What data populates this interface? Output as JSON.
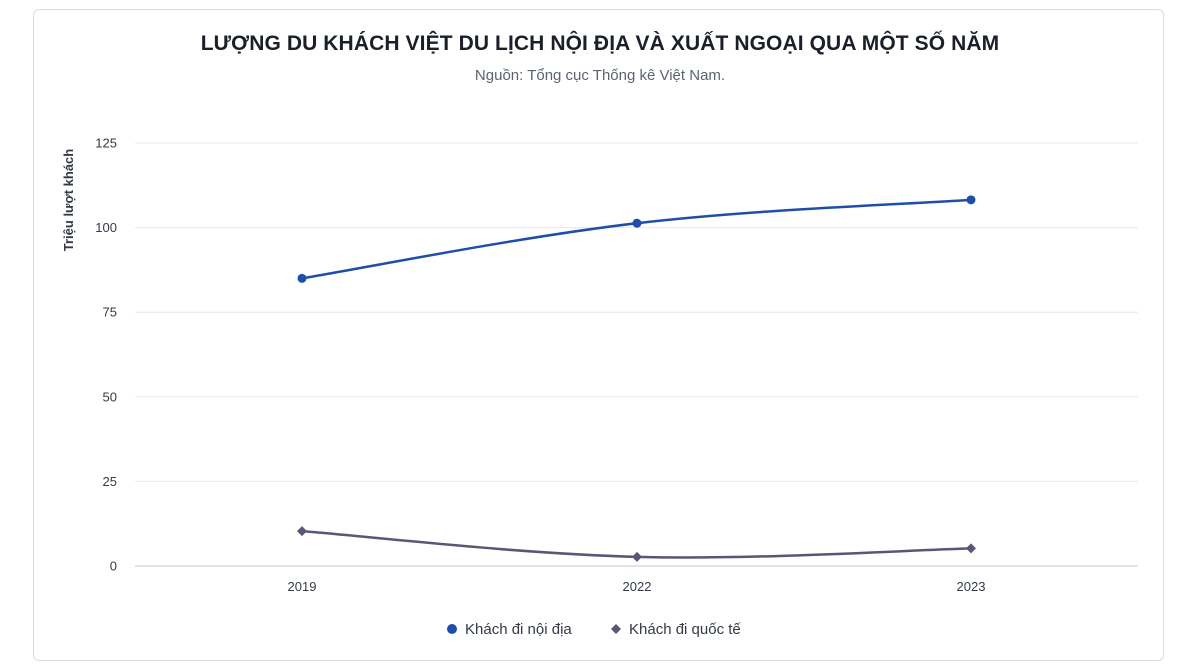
{
  "chart_data": {
    "type": "line",
    "title": "LƯỢNG DU KHÁCH VIỆT DU LỊCH NỘI ĐỊA VÀ XUẤT NGOẠI QUA MỘT SỐ NĂM",
    "subtitle": "Nguồn: Tổng cục Thống kê Việt Nam.",
    "xlabel": "",
    "ylabel": "Triệu lượt khách",
    "categories": [
      "2019",
      "2022",
      "2023"
    ],
    "yticks": [
      "0",
      "25",
      "50",
      "75",
      "100",
      "125"
    ],
    "ylim": [
      0,
      125
    ],
    "grid": true,
    "legend_position": "bottom-center",
    "series": [
      {
        "name": "Khách đi nội địa",
        "values": [
          85,
          101.3,
          108.2
        ],
        "color": "#1f4ea8",
        "marker": "circle"
      },
      {
        "name": "Khách đi quốc tế",
        "values": [
          10.3,
          2.7,
          5.2
        ],
        "color": "#5a5677",
        "marker": "diamond"
      }
    ]
  }
}
